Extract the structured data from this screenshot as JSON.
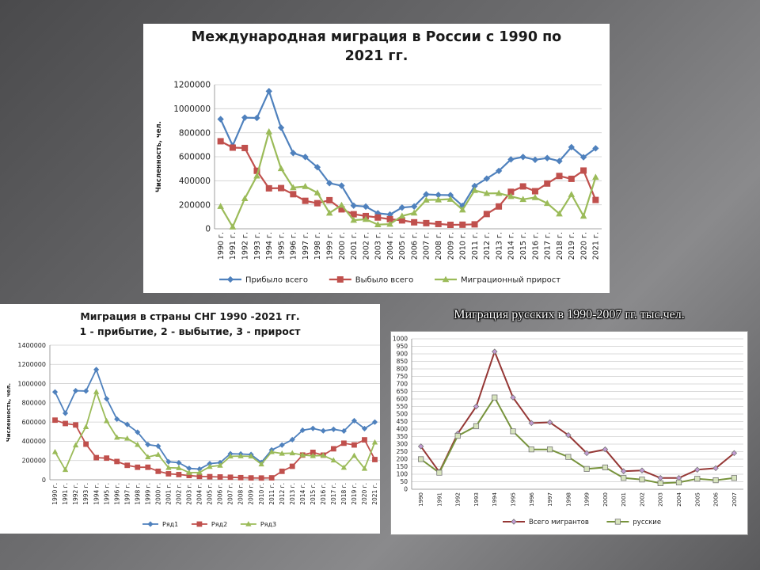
{
  "slide": {
    "caption": "Миграция русских в 1990-2007 гг. тыс.чел."
  },
  "chart_data": [
    {
      "id": "chart1",
      "type": "line",
      "title_line1": "Международная миграция в России с 1990 по",
      "title_line2": "2021 гг.",
      "ylabel": "Численность, чел.",
      "xlabel": "",
      "ylim": [
        0,
        1200000
      ],
      "ytick_step": 200000,
      "grid": true,
      "legend_position": "bottom",
      "categories": [
        "1990 г.",
        "1991 г.",
        "1992 г.",
        "1993 г.",
        "1994 г.",
        "1995 г.",
        "1996 г.",
        "1997 г.",
        "1998 г.",
        "1999 г.",
        "2000 г.",
        "2001 г.",
        "2002 г.",
        "2003 г.",
        "2004 г.",
        "2005 г.",
        "2006 г.",
        "2007 г.",
        "2008 г.",
        "2009 г.",
        "2010 г.",
        "2011 г.",
        "2012 г.",
        "2013 г.",
        "2014 г.",
        "2015 г.",
        "2016 г.",
        "2017 г.",
        "2018 г.",
        "2019 г.",
        "2020 г.",
        "2021 г."
      ],
      "series": [
        {
          "name": "Прибыло всего",
          "color": "#4f81bd",
          "marker": "diamond",
          "values": [
            913000,
            692000,
            926000,
            923000,
            1146000,
            842000,
            631000,
            598000,
            513000,
            380000,
            359000,
            193000,
            185000,
            129000,
            119000,
            177000,
            186000,
            287000,
            282000,
            280000,
            191000,
            356000,
            418000,
            482000,
            578000,
            598000,
            575000,
            589000,
            564000,
            680000,
            596000,
            670000
          ]
        },
        {
          "name": "Выбыло всего",
          "color": "#c0504d",
          "marker": "square",
          "values": [
            729000,
            676000,
            673000,
            483000,
            337000,
            339000,
            288000,
            233000,
            213000,
            238000,
            162000,
            121000,
            106000,
            94000,
            80000,
            70000,
            54000,
            47000,
            40000,
            33000,
            34000,
            37000,
            123000,
            186000,
            308000,
            353000,
            313000,
            377000,
            440000,
            416000,
            485000,
            240000
          ]
        },
        {
          "name": "Миграционный прирост",
          "color": "#9bbb59",
          "marker": "triangle",
          "values": [
            187000,
            16000,
            252000,
            440000,
            809000,
            502000,
            343000,
            353000,
            300000,
            131000,
            197000,
            72000,
            79000,
            35000,
            39000,
            107000,
            132000,
            240000,
            242000,
            247000,
            158000,
            320000,
            295000,
            296000,
            270000,
            245000,
            261000,
            212000,
            125000,
            286000,
            106000,
            430000
          ]
        }
      ]
    },
    {
      "id": "chart2",
      "type": "line",
      "title_line1": "Миграция в страны СНГ  1990 -2021 гг.",
      "title_line2": "1 - прибытие, 2 - выбытие, 3 - прирост",
      "ylabel": "Численность, чел.",
      "xlabel": "",
      "ylim": [
        0,
        1400000
      ],
      "ytick_step": 200000,
      "grid": true,
      "legend_position": "bottom",
      "categories": [
        "1990 г.",
        "1991 г.",
        "1992 г.",
        "1993 г.",
        "1994 г.",
        "1995 г.",
        "1996 г.",
        "1997 г.",
        "1998 г.",
        "1999 г.",
        "2000 г.",
        "2001 г.",
        "2002 г.",
        "2003 г.",
        "2004 г.",
        "2005 г.",
        "2006 г.",
        "2007 г.",
        "2008 г.",
        "2009 г.",
        "2010 г.",
        "2011 г.",
        "2012 г.",
        "2013 г.",
        "2014 г.",
        "2015 г.",
        "2016 г.",
        "2017 г.",
        "2018 г.",
        "2019 г.",
        "2020 г.",
        "2021 г."
      ],
      "series": [
        {
          "name": "Ряд1",
          "color": "#4f81bd",
          "marker": "diamond",
          "values": [
            913000,
            692000,
            926000,
            923000,
            1146000,
            842000,
            631000,
            575000,
            495000,
            366000,
            350000,
            187000,
            177000,
            118000,
            111000,
            168000,
            178000,
            270000,
            268000,
            263000,
            180000,
            310000,
            361000,
            417000,
            515000,
            534000,
            509000,
            525000,
            507000,
            614000,
            532000,
            600000
          ]
        },
        {
          "name": "Ряд2",
          "color": "#c0504d",
          "marker": "square",
          "values": [
            620000,
            585000,
            570000,
            370000,
            230000,
            225000,
            190000,
            150000,
            130000,
            130000,
            88000,
            62000,
            54000,
            44000,
            35000,
            32000,
            29000,
            26000,
            22000,
            19000,
            18000,
            20000,
            88000,
            140000,
            257000,
            285000,
            256000,
            322000,
            380000,
            362000,
            415000,
            210000
          ]
        },
        {
          "name": "Ряд3",
          "color": "#9bbb59",
          "marker": "triangle",
          "values": [
            290000,
            104000,
            360000,
            550000,
            915000,
            612000,
            440000,
            430000,
            365000,
            236000,
            262000,
            125000,
            123000,
            74000,
            76000,
            136000,
            149000,
            244000,
            246000,
            244000,
            162000,
            290000,
            273000,
            277000,
            258000,
            249000,
            253000,
            203000,
            127000,
            252000,
            117000,
            390000
          ]
        }
      ]
    },
    {
      "id": "chart3",
      "type": "line",
      "title": "",
      "ylabel": "",
      "xlabel": "",
      "ylim": [
        0,
        1000
      ],
      "ytick_step": 50,
      "grid": true,
      "legend_position": "bottom",
      "categories": [
        "1990",
        "1991",
        "1992",
        "1993",
        "1994",
        "1995",
        "1996",
        "1997",
        "1998",
        "1999",
        "2000",
        "2001",
        "2002",
        "2003",
        "2004",
        "2005",
        "2006",
        "2007"
      ],
      "series": [
        {
          "name": "Всего мигрантов",
          "color": "#953735",
          "marker_color": "#c39bd3",
          "marker": "diamond",
          "values": [
            285,
            115,
            370,
            550,
            915,
            610,
            440,
            445,
            360,
            240,
            265,
            120,
            125,
            75,
            75,
            130,
            140,
            240
          ]
        },
        {
          "name": "русские",
          "color": "#77933c",
          "marker_color": "#d7e4bd",
          "marker": "square",
          "values": [
            200,
            110,
            355,
            420,
            610,
            385,
            265,
            265,
            215,
            135,
            145,
            75,
            65,
            40,
            45,
            70,
            60,
            75
          ]
        }
      ]
    }
  ]
}
